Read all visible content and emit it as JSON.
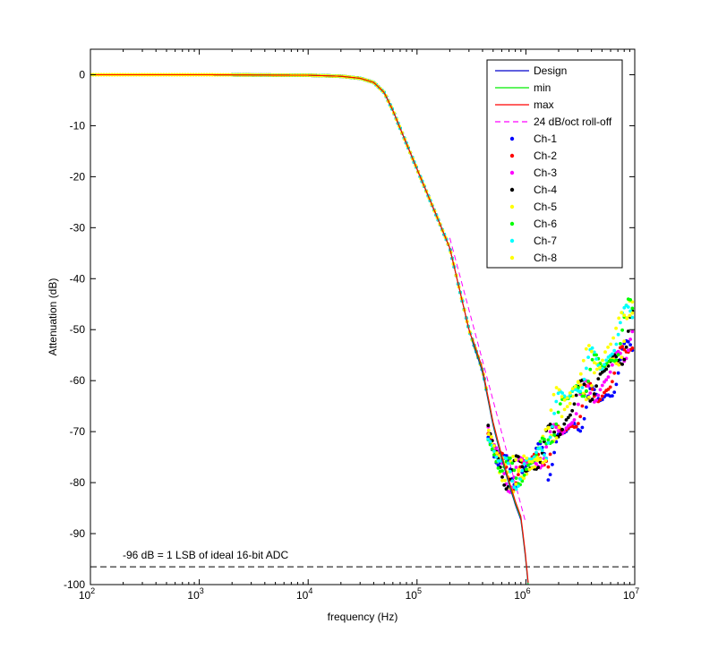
{
  "chart_data": {
    "type": "line",
    "title": "",
    "xlabel": "frequency (Hz)",
    "ylabel": "Attenuation (dB)",
    "xscale": "log",
    "xlim": [
      100,
      10000000
    ],
    "ylim": [
      -100,
      5
    ],
    "x_ticks": [
      100,
      1000,
      10000,
      100000,
      1000000,
      10000000
    ],
    "x_tick_labels": [
      {
        "base": "10",
        "exp": "2"
      },
      {
        "base": "10",
        "exp": "3"
      },
      {
        "base": "10",
        "exp": "4"
      },
      {
        "base": "10",
        "exp": "5"
      },
      {
        "base": "10",
        "exp": "6"
      },
      {
        "base": "10",
        "exp": "7"
      }
    ],
    "y_ticks": [
      0,
      -10,
      -20,
      -30,
      -40,
      -50,
      -60,
      -70,
      -80,
      -90,
      -100
    ],
    "y_tick_labels": [
      "0",
      "-10",
      "-20",
      "-30",
      "-40",
      "-50",
      "-60",
      "-70",
      "-80",
      "-90",
      "-100"
    ],
    "grid": false,
    "legend_position": "top-right",
    "design_curve": {
      "x": [
        100,
        1000,
        10000,
        20000,
        30000,
        40000,
        50000,
        60000,
        70000,
        80000,
        100000,
        150000,
        200000,
        300000,
        400000,
        500000,
        600000,
        700000,
        800000,
        900000,
        1000000,
        1050000
      ],
      "y": [
        0,
        0,
        -0.1,
        -0.3,
        -0.7,
        -1.5,
        -3.5,
        -7,
        -10.5,
        -13.5,
        -18.5,
        -27.5,
        -34,
        -50,
        -58,
        -68.5,
        -75,
        -80,
        -84,
        -87,
        -95,
        -100
      ]
    },
    "series": [
      {
        "name": "Design",
        "style": "line",
        "color": "#0000cc"
      },
      {
        "name": "min",
        "style": "line",
        "color": "#00ee00"
      },
      {
        "name": "max",
        "style": "line",
        "color": "#ff0000"
      },
      {
        "name": "24 dB/oct roll-off",
        "style": "dashed",
        "color": "#ff00ff",
        "x": [
          200000,
          1000000
        ],
        "y": [
          -32,
          -88
        ]
      },
      {
        "name": "Ch-1",
        "style": "marker",
        "color": "#0000ff"
      },
      {
        "name": "Ch-2",
        "style": "marker",
        "color": "#ff0000"
      },
      {
        "name": "Ch-3",
        "style": "marker",
        "color": "#ff00ff"
      },
      {
        "name": "Ch-4",
        "style": "marker",
        "color": "#000000"
      },
      {
        "name": "Ch-5",
        "style": "marker",
        "color": "#ffff00"
      },
      {
        "name": "Ch-6",
        "style": "marker",
        "color": "#00ff00"
      },
      {
        "name": "Ch-7",
        "style": "marker",
        "color": "#00ffff"
      },
      {
        "name": "Ch-8",
        "style": "marker",
        "color": "#ffff00"
      }
    ],
    "measured_tail": {
      "x": [
        450000,
        500000,
        550000,
        600000,
        650000,
        700000,
        750000,
        800000,
        900000,
        1000000,
        1200000,
        1500000,
        2000000,
        2500000,
        3000000,
        4000000,
        5000000,
        6000000,
        7000000,
        8000000,
        9000000
      ],
      "y": [
        -70,
        -73,
        -75.5,
        -77,
        -78,
        -78.5,
        -78.5,
        -78,
        -77.5,
        -77,
        -76,
        -73,
        -68,
        -66,
        -63,
        -60,
        -59,
        -57,
        -55,
        -52,
        -48
      ]
    },
    "reference_line": {
      "y": -96.5,
      "label": "-96 dB = 1 LSB of ideal 16-bit ADC",
      "color": "#000000"
    }
  }
}
